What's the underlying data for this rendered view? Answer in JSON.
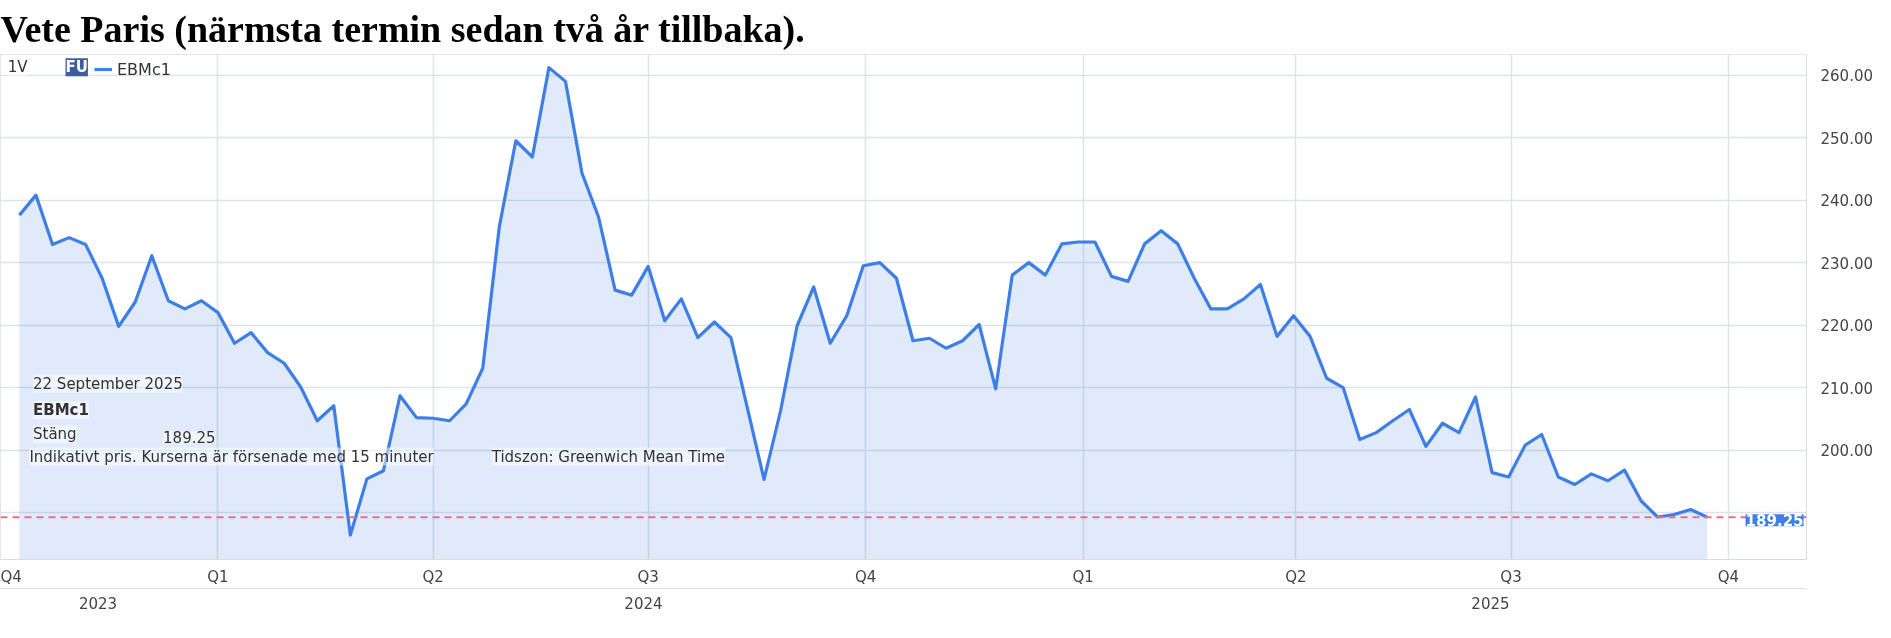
{
  "chart_data": {
    "type": "area",
    "title": "Vete Paris (närmsta termin sedan två år tillbaka).",
    "x": [
      "2023-10-09",
      "2023-10-16",
      "2023-10-23",
      "2023-10-30",
      "2023-11-06",
      "2023-11-13",
      "2023-11-20",
      "2023-11-27",
      "2023-12-04",
      "2023-12-11",
      "2023-12-18",
      "2023-12-25",
      "2024-01-01",
      "2024-01-08",
      "2024-01-15",
      "2024-01-22",
      "2024-01-29",
      "2024-02-05",
      "2024-02-12",
      "2024-02-19",
      "2024-02-26",
      "2024-03-04",
      "2024-03-11",
      "2024-03-18",
      "2024-03-25",
      "2024-04-01",
      "2024-04-08",
      "2024-04-15",
      "2024-04-22",
      "2024-04-29",
      "2024-05-06",
      "2024-05-13",
      "2024-05-20",
      "2024-05-27",
      "2024-06-03",
      "2024-06-10",
      "2024-06-17",
      "2024-06-24",
      "2024-07-01",
      "2024-07-08",
      "2024-07-15",
      "2024-07-22",
      "2024-07-29",
      "2024-08-05",
      "2024-08-19",
      "2024-08-26",
      "2024-09-02",
      "2024-09-09",
      "2024-09-16",
      "2024-09-23",
      "2024-09-30",
      "2024-10-07",
      "2024-10-14",
      "2024-10-21",
      "2024-10-28",
      "2024-11-04",
      "2024-11-11",
      "2024-11-18",
      "2024-11-25",
      "2024-12-02",
      "2024-12-09",
      "2024-12-16",
      "2024-12-23",
      "2024-12-30",
      "2025-01-06",
      "2025-01-13",
      "2025-01-20",
      "2025-01-27",
      "2025-02-03",
      "2025-02-10",
      "2025-02-17",
      "2025-02-24",
      "2025-03-03",
      "2025-03-10",
      "2025-03-17",
      "2025-03-24",
      "2025-03-31",
      "2025-04-07",
      "2025-04-14",
      "2025-04-21",
      "2025-04-28",
      "2025-05-05",
      "2025-05-12",
      "2025-05-19",
      "2025-05-26",
      "2025-06-02",
      "2025-06-09",
      "2025-06-16",
      "2025-06-23",
      "2025-06-30",
      "2025-07-07",
      "2025-07-14",
      "2025-07-21",
      "2025-07-28",
      "2025-08-04",
      "2025-08-11",
      "2025-08-18",
      "2025-08-25",
      "2025-09-01",
      "2025-09-08",
      "2025-09-15",
      "2025-09-22"
    ],
    "series": [
      {
        "name": "EBMc1",
        "color": "#3d7fe6",
        "values": [
          237.6,
          240.8,
          232.9,
          234.0,
          232.9,
          227.5,
          219.8,
          223.7,
          231.1,
          223.9,
          222.6,
          223.9,
          222.0,
          217.1,
          218.8,
          215.6,
          213.9,
          210.1,
          204.7,
          207.1,
          186.4,
          195.4,
          196.7,
          208.7,
          205.2,
          205.1,
          204.7,
          207.4,
          213.1,
          235.7,
          249.5,
          246.9,
          261.2,
          259.0,
          244.3,
          237.3,
          225.6,
          224.8,
          229.4,
          220.7,
          224.2,
          218.0,
          220.5,
          218.0,
          195.3,
          206.3,
          219.9,
          226.1,
          217.1,
          221.5,
          229.5,
          230.0,
          227.5,
          217.5,
          217.9,
          216.3,
          217.5,
          220.1,
          209.8,
          228.0,
          230.0,
          228.0,
          233.0,
          233.3,
          233.3,
          227.8,
          227.0,
          233.0,
          235.1,
          233.0,
          227.5,
          222.6,
          222.6,
          224.2,
          226.5,
          218.2,
          221.5,
          218.2,
          211.5,
          210.0,
          201.7,
          202.8,
          204.7,
          206.5,
          200.6,
          204.3,
          202.8,
          208.5,
          196.4,
          195.7,
          200.8,
          202.5,
          195.7,
          194.5,
          196.2,
          195.1,
          196.8,
          191.9,
          189.3,
          189.7,
          190.5,
          189.25
        ]
      }
    ],
    "xlim": [
      "2023-10-01",
      "2025-11-03"
    ],
    "xticks": [
      {
        "value": "2023-10-01",
        "label": "Q4"
      },
      {
        "value": "2024-01-01",
        "label": "Q1"
      },
      {
        "value": "2024-04-01",
        "label": "Q2"
      },
      {
        "value": "2024-07-01",
        "label": "Q3"
      },
      {
        "value": "2024-10-01",
        "label": "Q4"
      },
      {
        "value": "2025-01-01",
        "label": "Q1"
      },
      {
        "value": "2025-04-01",
        "label": "Q2"
      },
      {
        "value": "2025-07-01",
        "label": "Q3"
      },
      {
        "value": "2025-10-01",
        "label": "Q4"
      }
    ],
    "ylim": [
      182.5,
      263.3
    ],
    "yticks": [
      {
        "value": 190,
        "label": null
      },
      {
        "value": 200,
        "label": "200.00"
      },
      {
        "value": 210,
        "label": "210.00"
      },
      {
        "value": 220,
        "label": "220.00"
      },
      {
        "value": 230,
        "label": "230.00"
      },
      {
        "value": 240,
        "label": "240.00"
      },
      {
        "value": 250,
        "label": "250.00"
      },
      {
        "value": 260,
        "label": "260.00"
      }
    ],
    "grid": true,
    "legend": "top left",
    "ref_lines": [
      {
        "axis": "y",
        "value": 189.25,
        "label": "189.25",
        "color": "#f06a8a",
        "line_style": "dashed"
      }
    ],
    "annotations": [
      "1V",
      "FU",
      "22 September 2025",
      "EBMc1",
      "Stäng",
      "189.25",
      "Indikativt pris. Kurserna är försenade med 15 minuter",
      "Tidszon: Greenwich Mean Time",
      "2023",
      "2024",
      "2025"
    ]
  }
}
